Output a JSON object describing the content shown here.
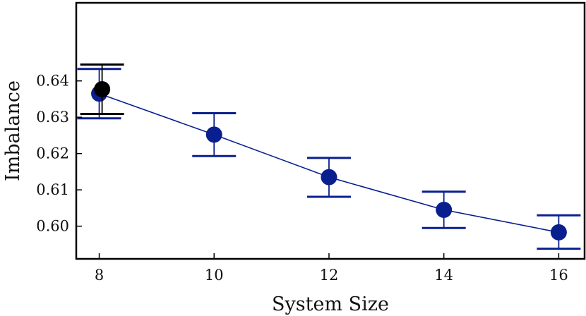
{
  "chart_data": {
    "type": "scatter",
    "title": "",
    "xlabel": "System Size",
    "ylabel": "Imbalance",
    "xlim": [
      7.6,
      16.45
    ],
    "ylim": [
      0.591,
      0.6615
    ],
    "xticks": [
      8,
      10,
      12,
      14,
      16
    ],
    "xtick_labels": [
      "8",
      "10",
      "12",
      "14",
      "16"
    ],
    "yticks": [
      0.6,
      0.61,
      0.62,
      0.63,
      0.64
    ],
    "ytick_labels": [
      "0.60",
      "0.61",
      "0.62",
      "0.63",
      "0.64"
    ],
    "grid": false,
    "legend": false,
    "series": [
      {
        "name": "main",
        "color": "#0a1f8f",
        "line": true,
        "x": [
          8,
          10,
          12,
          14,
          16
        ],
        "y": [
          0.6365,
          0.6252,
          0.6135,
          0.6045,
          0.5983
        ],
        "err_low": [
          0.6297,
          0.6193,
          0.6081,
          0.5995,
          0.5938
        ],
        "err_high": [
          0.6433,
          0.6311,
          0.6188,
          0.6095,
          0.603
        ]
      },
      {
        "name": "single point",
        "color": "#000000",
        "line": false,
        "x": [
          8.05
        ],
        "y": [
          0.6377
        ],
        "err_low": [
          0.6309
        ],
        "err_high": [
          0.6445
        ]
      }
    ]
  }
}
